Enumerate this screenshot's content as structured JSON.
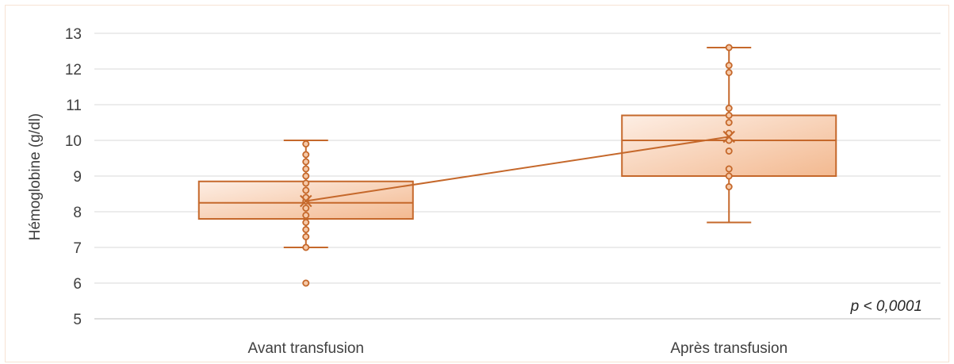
{
  "chart_data": {
    "type": "box",
    "title": "",
    "xlabel": "",
    "ylabel": "Hémoglobine (g/dl)",
    "ylim": [
      5,
      13
    ],
    "yticks": [
      5,
      6,
      7,
      8,
      9,
      10,
      11,
      12,
      13
    ],
    "categories": [
      "Avant transfusion",
      "Après transfusion"
    ],
    "grid": true,
    "color": "#c5682b",
    "box_fill_light": "#fdeee4",
    "box_fill_dark": "#f3b990",
    "annotation": "p < 0,0001",
    "boxes": [
      {
        "category": "Avant transfusion",
        "min": 7.0,
        "q1": 7.8,
        "median": 8.25,
        "q3": 8.85,
        "max": 10.0,
        "mean": 8.3,
        "points": [
          6.0,
          7.0,
          7.3,
          7.5,
          7.7,
          7.9,
          8.1,
          8.3,
          8.4,
          8.6,
          8.8,
          9.0,
          9.2,
          9.4,
          9.6,
          9.9
        ]
      },
      {
        "category": "Après transfusion",
        "min": 7.7,
        "q1": 9.0,
        "median": 10.0,
        "q3": 10.7,
        "max": 12.6,
        "mean": 10.1,
        "points": [
          8.7,
          9.0,
          9.2,
          9.7,
          10.0,
          10.2,
          10.5,
          10.7,
          10.9,
          11.9,
          12.1,
          12.6
        ]
      }
    ]
  }
}
